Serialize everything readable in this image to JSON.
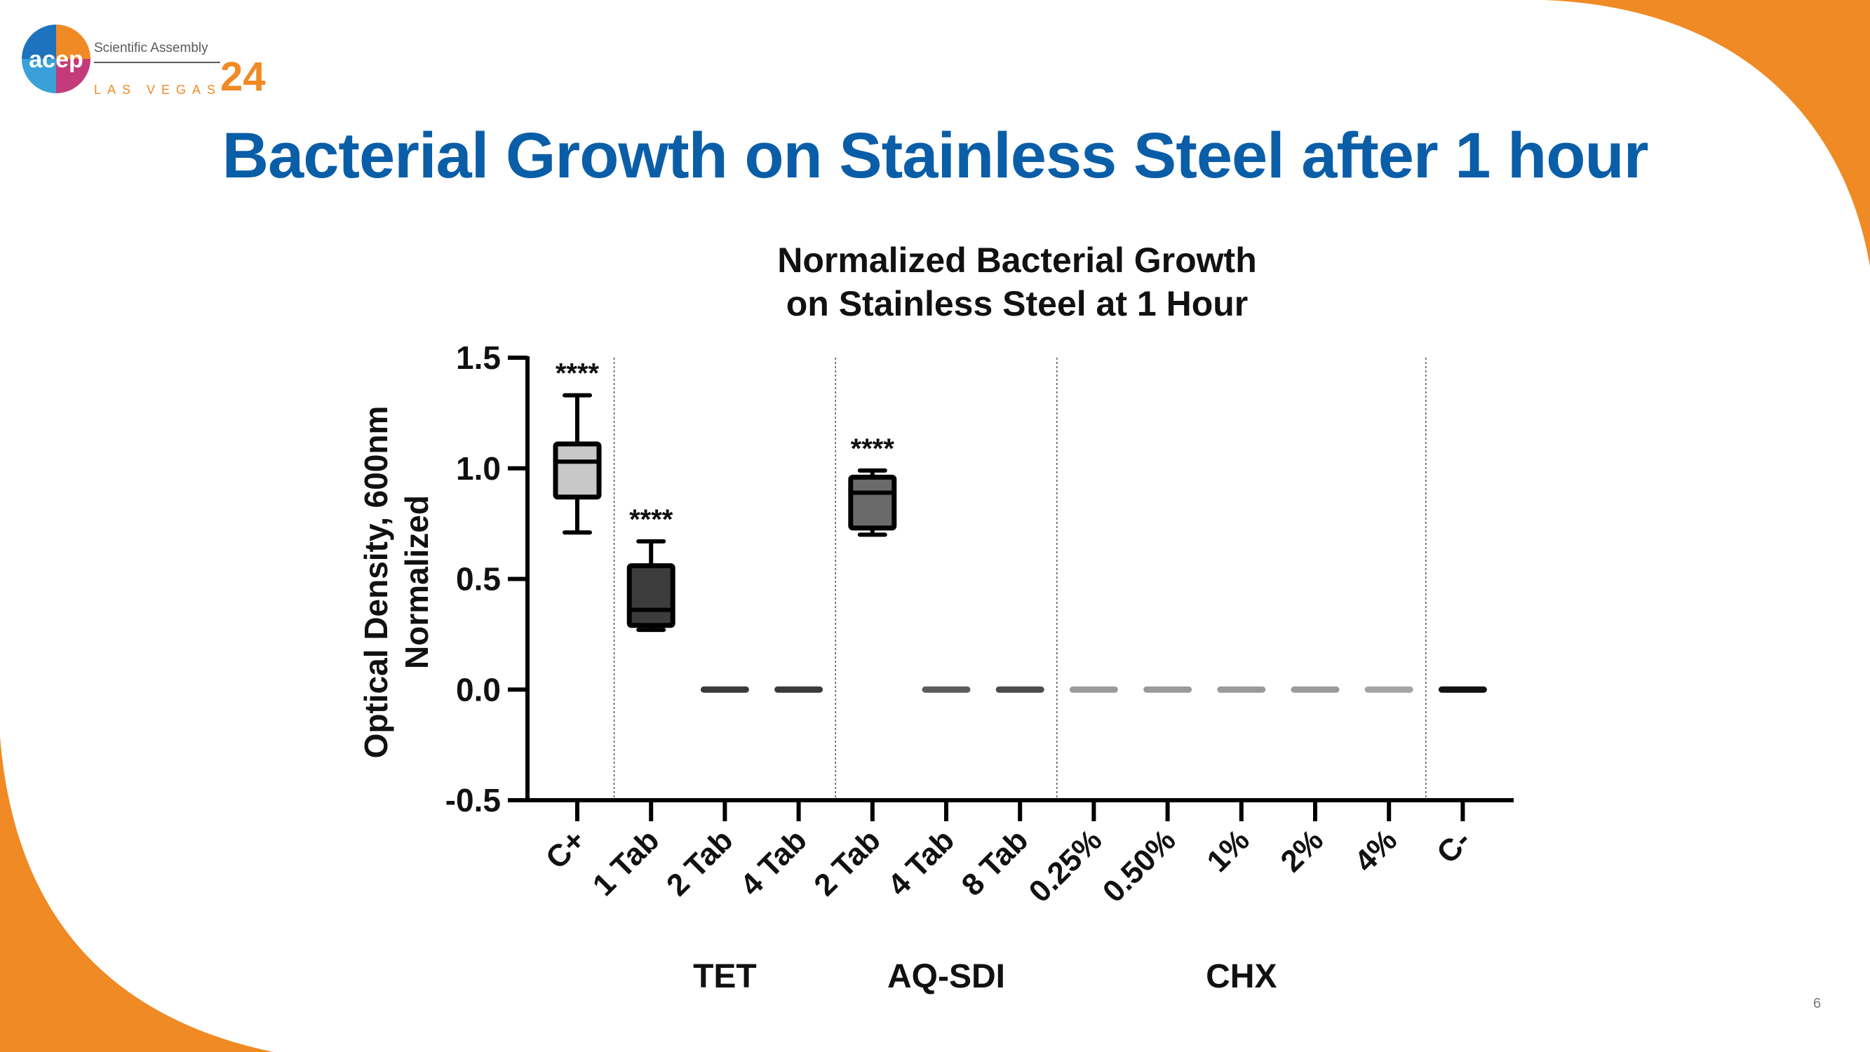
{
  "logo": {
    "brand": "acep",
    "subtitle": "Scientific Assembly",
    "city": "LAS VEGAS",
    "year": "24"
  },
  "slide_title": "Bacterial Growth on Stainless Steel after 1 hour",
  "page_number": "6",
  "colors": {
    "title_blue": "#0a5ea8",
    "accent_orange": "#f08a24"
  },
  "chart_data": {
    "type": "box",
    "title": "Normalized Bacterial Growth on Stainless Steel at 1 Hour",
    "title_lines": [
      "Normalized Bacterial Growth",
      "on Stainless Steel at 1 Hour"
    ],
    "ylabel_lines": [
      "Optical Density, 600nm",
      "Normalized"
    ],
    "ylim": [
      -0.5,
      1.5
    ],
    "yticks": [
      "1.5",
      "1.0",
      "0.5",
      "0.0",
      "-0.5"
    ],
    "categories": [
      "C+",
      "1 Tab",
      "2 Tab",
      "4 Tab",
      "2 Tab",
      "4 Tab",
      "8 Tab",
      "0.25%",
      "0.50%",
      "1%",
      "2%",
      "4%",
      "C-"
    ],
    "groups": [
      {
        "label": "TET",
        "categories": [
          "1 Tab",
          "2 Tab",
          "4 Tab"
        ]
      },
      {
        "label": "AQ-SDI",
        "categories": [
          "2 Tab",
          "4 Tab",
          "8 Tab"
        ]
      },
      {
        "label": "CHX",
        "categories": [
          "0.25%",
          "0.50%",
          "1%",
          "2%",
          "4%"
        ]
      }
    ],
    "boxes": [
      {
        "category": "C+",
        "min": 0.71,
        "q1": 0.87,
        "median": 1.03,
        "q3": 1.11,
        "max": 1.33,
        "fill": "#c8c8c8",
        "annotation": "****"
      },
      {
        "category": "1 Tab",
        "min": 0.27,
        "q1": 0.29,
        "median": 0.36,
        "q3": 0.56,
        "max": 0.67,
        "fill": "#3c3c3c",
        "annotation": "****"
      },
      {
        "category": "2 Tab",
        "min": 0.0,
        "q1": 0.0,
        "median": 0.0,
        "q3": 0.0,
        "max": 0.0,
        "fill": "#3a3a3a",
        "annotation": ""
      },
      {
        "category": "4 Tab",
        "min": 0.0,
        "q1": 0.0,
        "median": 0.0,
        "q3": 0.0,
        "max": 0.0,
        "fill": "#3a3a3a",
        "annotation": ""
      },
      {
        "category": "2 Tab",
        "min": 0.7,
        "q1": 0.73,
        "median": 0.89,
        "q3": 0.96,
        "max": 0.99,
        "fill": "#6a6a6a",
        "annotation": "****"
      },
      {
        "category": "4 Tab",
        "min": 0.0,
        "q1": 0.0,
        "median": 0.0,
        "q3": 0.0,
        "max": 0.0,
        "fill": "#5c5c5c",
        "annotation": ""
      },
      {
        "category": "8 Tab",
        "min": 0.0,
        "q1": 0.0,
        "median": 0.0,
        "q3": 0.0,
        "max": 0.0,
        "fill": "#4c4c4c",
        "annotation": ""
      },
      {
        "category": "0.25%",
        "min": 0.0,
        "q1": 0.0,
        "median": 0.0,
        "q3": 0.0,
        "max": 0.0,
        "fill": "#9a9a9a",
        "annotation": ""
      },
      {
        "category": "0.50%",
        "min": 0.0,
        "q1": 0.0,
        "median": 0.0,
        "q3": 0.0,
        "max": 0.0,
        "fill": "#9a9a9a",
        "annotation": ""
      },
      {
        "category": "1%",
        "min": 0.0,
        "q1": 0.0,
        "median": 0.0,
        "q3": 0.0,
        "max": 0.0,
        "fill": "#9a9a9a",
        "annotation": ""
      },
      {
        "category": "2%",
        "min": 0.0,
        "q1": 0.0,
        "median": 0.0,
        "q3": 0.0,
        "max": 0.0,
        "fill": "#9a9a9a",
        "annotation": ""
      },
      {
        "category": "4%",
        "min": 0.0,
        "q1": 0.0,
        "median": 0.0,
        "q3": 0.0,
        "max": 0.0,
        "fill": "#a4a4a4",
        "annotation": ""
      },
      {
        "category": "C-",
        "min": 0.0,
        "q1": 0.0,
        "median": 0.0,
        "q3": 0.0,
        "max": 0.0,
        "fill": "#111111",
        "annotation": ""
      }
    ],
    "group_separators_after_index": [
      0,
      3,
      6,
      11
    ],
    "grid": false,
    "legend": "none"
  }
}
